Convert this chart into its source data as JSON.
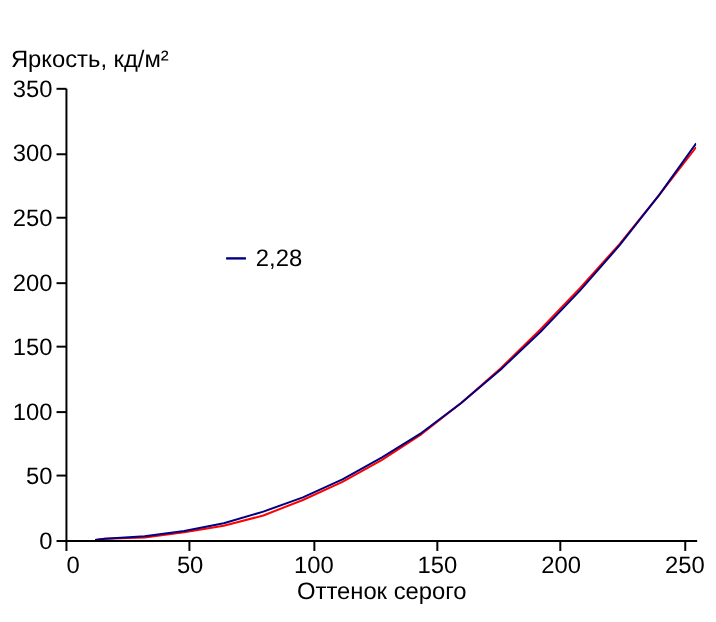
{
  "chart_data": {
    "type": "line",
    "xlabel": "Оттенок серого",
    "ylabel": "Яркость, кд/м²",
    "xlim": [
      0,
      255
    ],
    "xticks": [
      0,
      50,
      100,
      150,
      200,
      250
    ],
    "ylim": [
      0,
      350
    ],
    "yticks": [
      0,
      50,
      100,
      150,
      200,
      250,
      300,
      350
    ],
    "grid": false,
    "legend": "top left",
    "marker": "none",
    "line_style": "solid",
    "series": [
      {
        "color": "#ff0000",
        "x": [
          12,
          16,
          32,
          48,
          64,
          80,
          96,
          112,
          128,
          144,
          160,
          176,
          192,
          208,
          224,
          240,
          255
        ],
        "values": [
          0,
          1,
          2,
          6,
          11,
          19,
          31,
          45,
          62,
          82,
          106,
          133,
          163,
          195,
          229,
          267,
          304
        ]
      },
      {
        "name": "2,28",
        "color": "#000080",
        "x": [
          12,
          16,
          32,
          48,
          64,
          80,
          96,
          112,
          128,
          144,
          160,
          176,
          192,
          208,
          224,
          240,
          255
        ],
        "values": [
          0,
          1,
          3,
          7,
          13,
          22,
          33,
          47,
          64,
          83,
          106,
          132,
          161,
          193,
          228,
          267,
          307
        ]
      }
    ]
  }
}
